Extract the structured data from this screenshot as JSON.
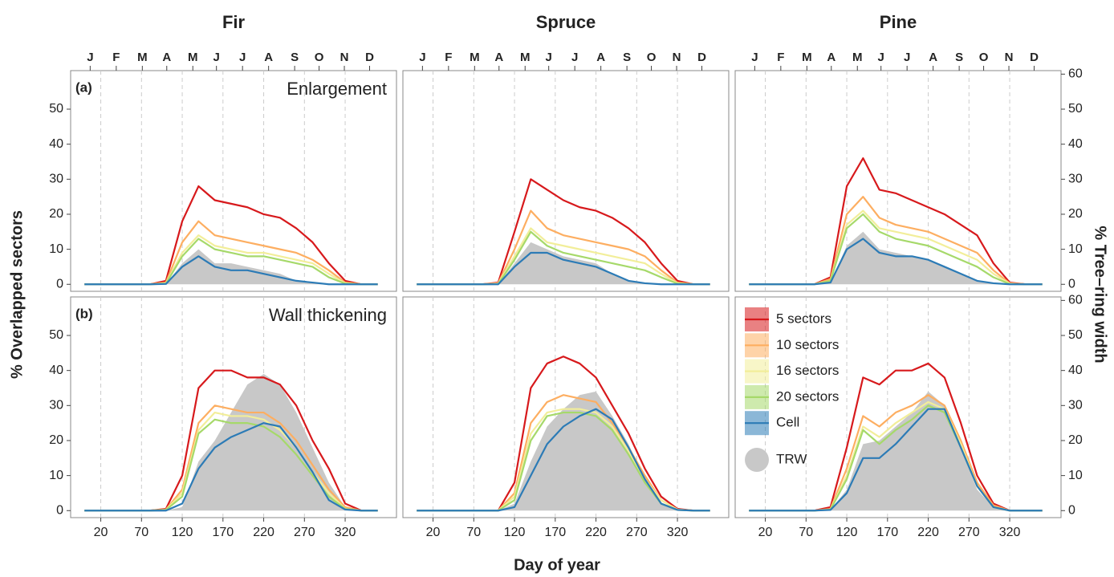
{
  "chart_data": {
    "type": "line",
    "columns": [
      "Fir",
      "Spruce",
      "Pine"
    ],
    "rows": [
      {
        "tag": "(a)",
        "label": "Enlargement"
      },
      {
        "tag": "(b)",
        "label": "Wall thickening"
      }
    ],
    "xlabel": "Day of year",
    "ylabel": "% Overlapped sectors",
    "y2label": "% Tree–ring width",
    "x": [
      0,
      20,
      40,
      60,
      80,
      100,
      120,
      140,
      160,
      180,
      200,
      220,
      240,
      260,
      280,
      300,
      320,
      340,
      360
    ],
    "xlim": [
      -17,
      383
    ],
    "xticks": [
      20,
      70,
      120,
      170,
      220,
      270,
      320
    ],
    "grid_x": true,
    "x2ticks": [
      {
        "value": 7,
        "label": "J"
      },
      {
        "value": 39,
        "label": "F"
      },
      {
        "value": 71,
        "label": "M"
      },
      {
        "value": 101,
        "label": "A"
      },
      {
        "value": 133,
        "label": "M"
      },
      {
        "value": 162,
        "label": "J"
      },
      {
        "value": 194,
        "label": "J"
      },
      {
        "value": 226,
        "label": "A"
      },
      {
        "value": 258,
        "label": "S"
      },
      {
        "value": 288,
        "label": "O"
      },
      {
        "value": 319,
        "label": "N"
      },
      {
        "value": 350,
        "label": "D"
      }
    ],
    "ylim": [
      -2,
      61
    ],
    "yticks": [
      0,
      10,
      20,
      30,
      40,
      50
    ],
    "y2lim": [
      -2,
      61
    ],
    "y2ticks": [
      0,
      10,
      20,
      30,
      40,
      50,
      60
    ],
    "series": [
      {
        "name": "5 sectors",
        "color": "#d7191c"
      },
      {
        "name": "10 sectors",
        "color": "#fdae61"
      },
      {
        "name": "16 sectors",
        "color": "#f2ee9a"
      },
      {
        "name": "20 sectors",
        "color": "#a6d96a"
      },
      {
        "name": "Cell",
        "color": "#2c7bb6"
      }
    ],
    "area": {
      "name": "TRW",
      "color": "#c8c8c8",
      "axis": "y2"
    },
    "panels": [
      {
        "series": [
          [
            0,
            0,
            0,
            0,
            0,
            1,
            18,
            28,
            24,
            23,
            22,
            20,
            19,
            16,
            12,
            6,
            1,
            0,
            0
          ],
          [
            0,
            0,
            0,
            0,
            0,
            0.5,
            12,
            18,
            14,
            13,
            12,
            11,
            10,
            9,
            7,
            4,
            0.5,
            0,
            0
          ],
          [
            0,
            0,
            0,
            0,
            0,
            0.3,
            9,
            14,
            11,
            10,
            9,
            9,
            8,
            7,
            6,
            3,
            0.3,
            0,
            0
          ],
          [
            0,
            0,
            0,
            0,
            0,
            0.2,
            8,
            13,
            10,
            9,
            8,
            8,
            7,
            6,
            5,
            2,
            0.2,
            0,
            0
          ],
          [
            0,
            0,
            0,
            0,
            0,
            0.1,
            5,
            8,
            5,
            4,
            4,
            3,
            2,
            1,
            0.5,
            0,
            0,
            0,
            0
          ]
        ],
        "area": [
          0,
          0,
          0,
          0,
          0,
          0,
          6,
          10,
          6,
          6,
          5,
          4,
          3,
          1,
          0.5,
          0,
          0,
          0,
          0
        ]
      },
      {
        "series": [
          [
            0,
            0,
            0,
            0,
            0,
            0.5,
            15,
            30,
            27,
            24,
            22,
            21,
            19,
            16,
            12,
            6,
            1,
            0,
            0
          ],
          [
            0,
            0,
            0,
            0,
            0,
            0.3,
            10,
            21,
            16,
            14,
            13,
            12,
            11,
            10,
            8,
            4,
            0.5,
            0,
            0
          ],
          [
            0,
            0,
            0,
            0,
            0,
            0.2,
            8,
            16,
            12,
            11,
            10,
            9,
            8,
            7,
            6,
            3,
            0.3,
            0,
            0
          ],
          [
            0,
            0,
            0,
            0,
            0,
            0.1,
            7,
            15,
            11,
            9,
            8,
            7,
            6,
            5,
            4,
            2,
            0.2,
            0,
            0
          ],
          [
            0,
            0,
            0,
            0,
            0,
            0,
            5,
            9,
            9,
            7,
            6,
            5,
            3,
            1,
            0.3,
            0,
            0,
            0,
            0
          ]
        ],
        "area": [
          0,
          0,
          0,
          0,
          0,
          0,
          6,
          12,
          10,
          8,
          7,
          6,
          3,
          1,
          0.3,
          0,
          0,
          0,
          0
        ]
      },
      {
        "series": [
          [
            0,
            0,
            0,
            0,
            0,
            2,
            28,
            36,
            27,
            26,
            24,
            22,
            20,
            17,
            14,
            6,
            0.5,
            0,
            0
          ],
          [
            0,
            0,
            0,
            0,
            0,
            1.5,
            20,
            25,
            19,
            17,
            16,
            15,
            13,
            11,
            9,
            4,
            0.3,
            0,
            0
          ],
          [
            0,
            0,
            0,
            0,
            0,
            1,
            17,
            21,
            16,
            15,
            14,
            13,
            11,
            9,
            7,
            3,
            0.2,
            0,
            0
          ],
          [
            0,
            0,
            0,
            0,
            0,
            1,
            16,
            20,
            15,
            13,
            12,
            11,
            9,
            7,
            5,
            2,
            0.1,
            0,
            0
          ],
          [
            0,
            0,
            0,
            0,
            0,
            0.5,
            10,
            13,
            9,
            8,
            8,
            7,
            5,
            3,
            1,
            0.3,
            0,
            0,
            0
          ]
        ],
        "area": [
          0,
          0,
          0,
          0,
          0,
          0.5,
          11,
          15,
          10,
          9,
          8,
          7,
          5,
          3,
          1,
          0.3,
          0,
          0,
          0
        ]
      },
      {
        "series": [
          [
            0,
            0,
            0,
            0,
            0,
            0.5,
            10,
            35,
            40,
            40,
            38,
            38,
            36,
            30,
            20,
            12,
            2,
            0,
            0
          ],
          [
            0,
            0,
            0,
            0,
            0,
            0.3,
            6,
            25,
            30,
            29,
            28,
            28,
            25,
            20,
            13,
            6,
            1,
            0,
            0
          ],
          [
            0,
            0,
            0,
            0,
            0,
            0.2,
            5,
            23,
            28,
            27,
            27,
            26,
            23,
            18,
            11,
            5,
            0.5,
            0,
            0
          ],
          [
            0,
            0,
            0,
            0,
            0,
            0.2,
            4,
            22,
            26,
            25,
            25,
            24,
            21,
            16,
            10,
            4,
            0.5,
            0,
            0
          ],
          [
            0,
            0,
            0,
            0,
            0,
            0,
            2,
            12,
            18,
            21,
            23,
            25,
            24,
            18,
            11,
            3,
            0.3,
            0,
            0
          ]
        ],
        "area": [
          0,
          0,
          0,
          0,
          0,
          0,
          1,
          14,
          20,
          28,
          36,
          39,
          36,
          28,
          18,
          8,
          1,
          0,
          0
        ]
      },
      {
        "series": [
          [
            0,
            0,
            0,
            0,
            0,
            0,
            8,
            35,
            42,
            44,
            42,
            38,
            30,
            22,
            12,
            4,
            0.5,
            0,
            0
          ],
          [
            0,
            0,
            0,
            0,
            0,
            0,
            5,
            25,
            31,
            33,
            32,
            31,
            25,
            18,
            10,
            3,
            0.3,
            0,
            0
          ],
          [
            0,
            0,
            0,
            0,
            0,
            0,
            4,
            22,
            28,
            29,
            29,
            28,
            24,
            17,
            9,
            3,
            0.3,
            0,
            0
          ],
          [
            0,
            0,
            0,
            0,
            0,
            0,
            3,
            20,
            27,
            28,
            28,
            27,
            23,
            16,
            8,
            2,
            0.2,
            0,
            0
          ],
          [
            0,
            0,
            0,
            0,
            0,
            0,
            1,
            10,
            19,
            24,
            27,
            29,
            26,
            18,
            9,
            2,
            0.2,
            0,
            0
          ]
        ],
        "area": [
          0,
          0,
          0,
          0,
          0,
          0,
          2,
          14,
          24,
          29,
          33,
          34,
          27,
          19,
          9,
          2,
          0,
          0,
          0
        ]
      },
      {
        "series": [
          [
            0,
            0,
            0,
            0,
            0,
            1,
            18,
            38,
            36,
            40,
            40,
            42,
            38,
            25,
            10,
            2,
            0,
            0,
            0
          ],
          [
            0,
            0,
            0,
            0,
            0,
            0.5,
            12,
            27,
            24,
            28,
            30,
            33,
            30,
            20,
            8,
            1.5,
            0,
            0,
            0
          ],
          [
            0,
            0,
            0,
            0,
            0,
            0.3,
            10,
            24,
            21,
            25,
            28,
            31,
            29,
            19,
            7,
            1,
            0,
            0,
            0
          ],
          [
            0,
            0,
            0,
            0,
            0,
            0.3,
            9,
            23,
            19,
            23,
            26,
            30,
            28,
            18,
            7,
            1,
            0,
            0,
            0
          ],
          [
            0,
            0,
            0,
            0,
            0,
            0.2,
            5,
            15,
            15,
            19,
            24,
            29,
            29,
            18,
            7,
            1,
            0,
            0,
            0
          ]
        ],
        "area": [
          0,
          0,
          0,
          0,
          0,
          0.2,
          6,
          19,
          20,
          24,
          28,
          34,
          30,
          18,
          6,
          1,
          0,
          0,
          0
        ]
      }
    ]
  }
}
